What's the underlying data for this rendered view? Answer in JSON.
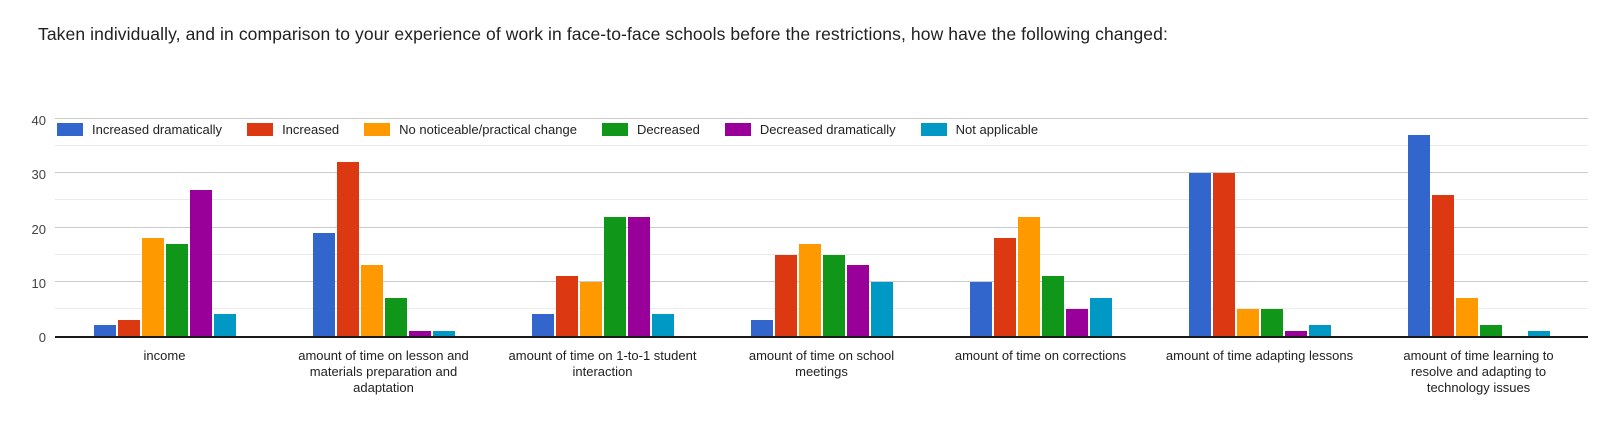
{
  "chart_data": {
    "type": "bar",
    "title": "Taken individually, and in comparison to your experience of work in face-to-face schools before the restrictions, how have the following changed:",
    "categories": [
      "income",
      "amount of time on lesson and materials preparation and adaptation",
      "amount of time on 1-to-1 student interaction",
      "amount of time on school meetings",
      "amount of time on corrections",
      "amount of time adapting lessons",
      "amount of time learning to resolve and adapting to technology issues"
    ],
    "series": [
      {
        "name": "Increased dramatically",
        "color": "#3366CC",
        "values": [
          2,
          19,
          4,
          3,
          10,
          30,
          37
        ]
      },
      {
        "name": "Increased",
        "color": "#DC3912",
        "values": [
          3,
          32,
          11,
          15,
          18,
          30,
          26
        ]
      },
      {
        "name": "No noticeable/practical change",
        "color": "#FF9900",
        "values": [
          18,
          13,
          10,
          17,
          22,
          5,
          7
        ]
      },
      {
        "name": "Decreased",
        "color": "#109618",
        "values": [
          17,
          7,
          22,
          15,
          11,
          5,
          2
        ]
      },
      {
        "name": "Decreased dramatically",
        "color": "#990099",
        "values": [
          27,
          1,
          22,
          13,
          5,
          1,
          0
        ]
      },
      {
        "name": "Not applicable",
        "color": "#0099C6",
        "values": [
          4,
          1,
          4,
          10,
          7,
          2,
          1
        ]
      }
    ],
    "ylabel": "",
    "xlabel": "",
    "ylim": [
      0,
      40
    ],
    "yticks": [
      0,
      10,
      20,
      30,
      40
    ],
    "minor_gridlines": [
      5,
      15,
      25,
      35
    ],
    "grid": true,
    "legend_position": "top-left"
  }
}
